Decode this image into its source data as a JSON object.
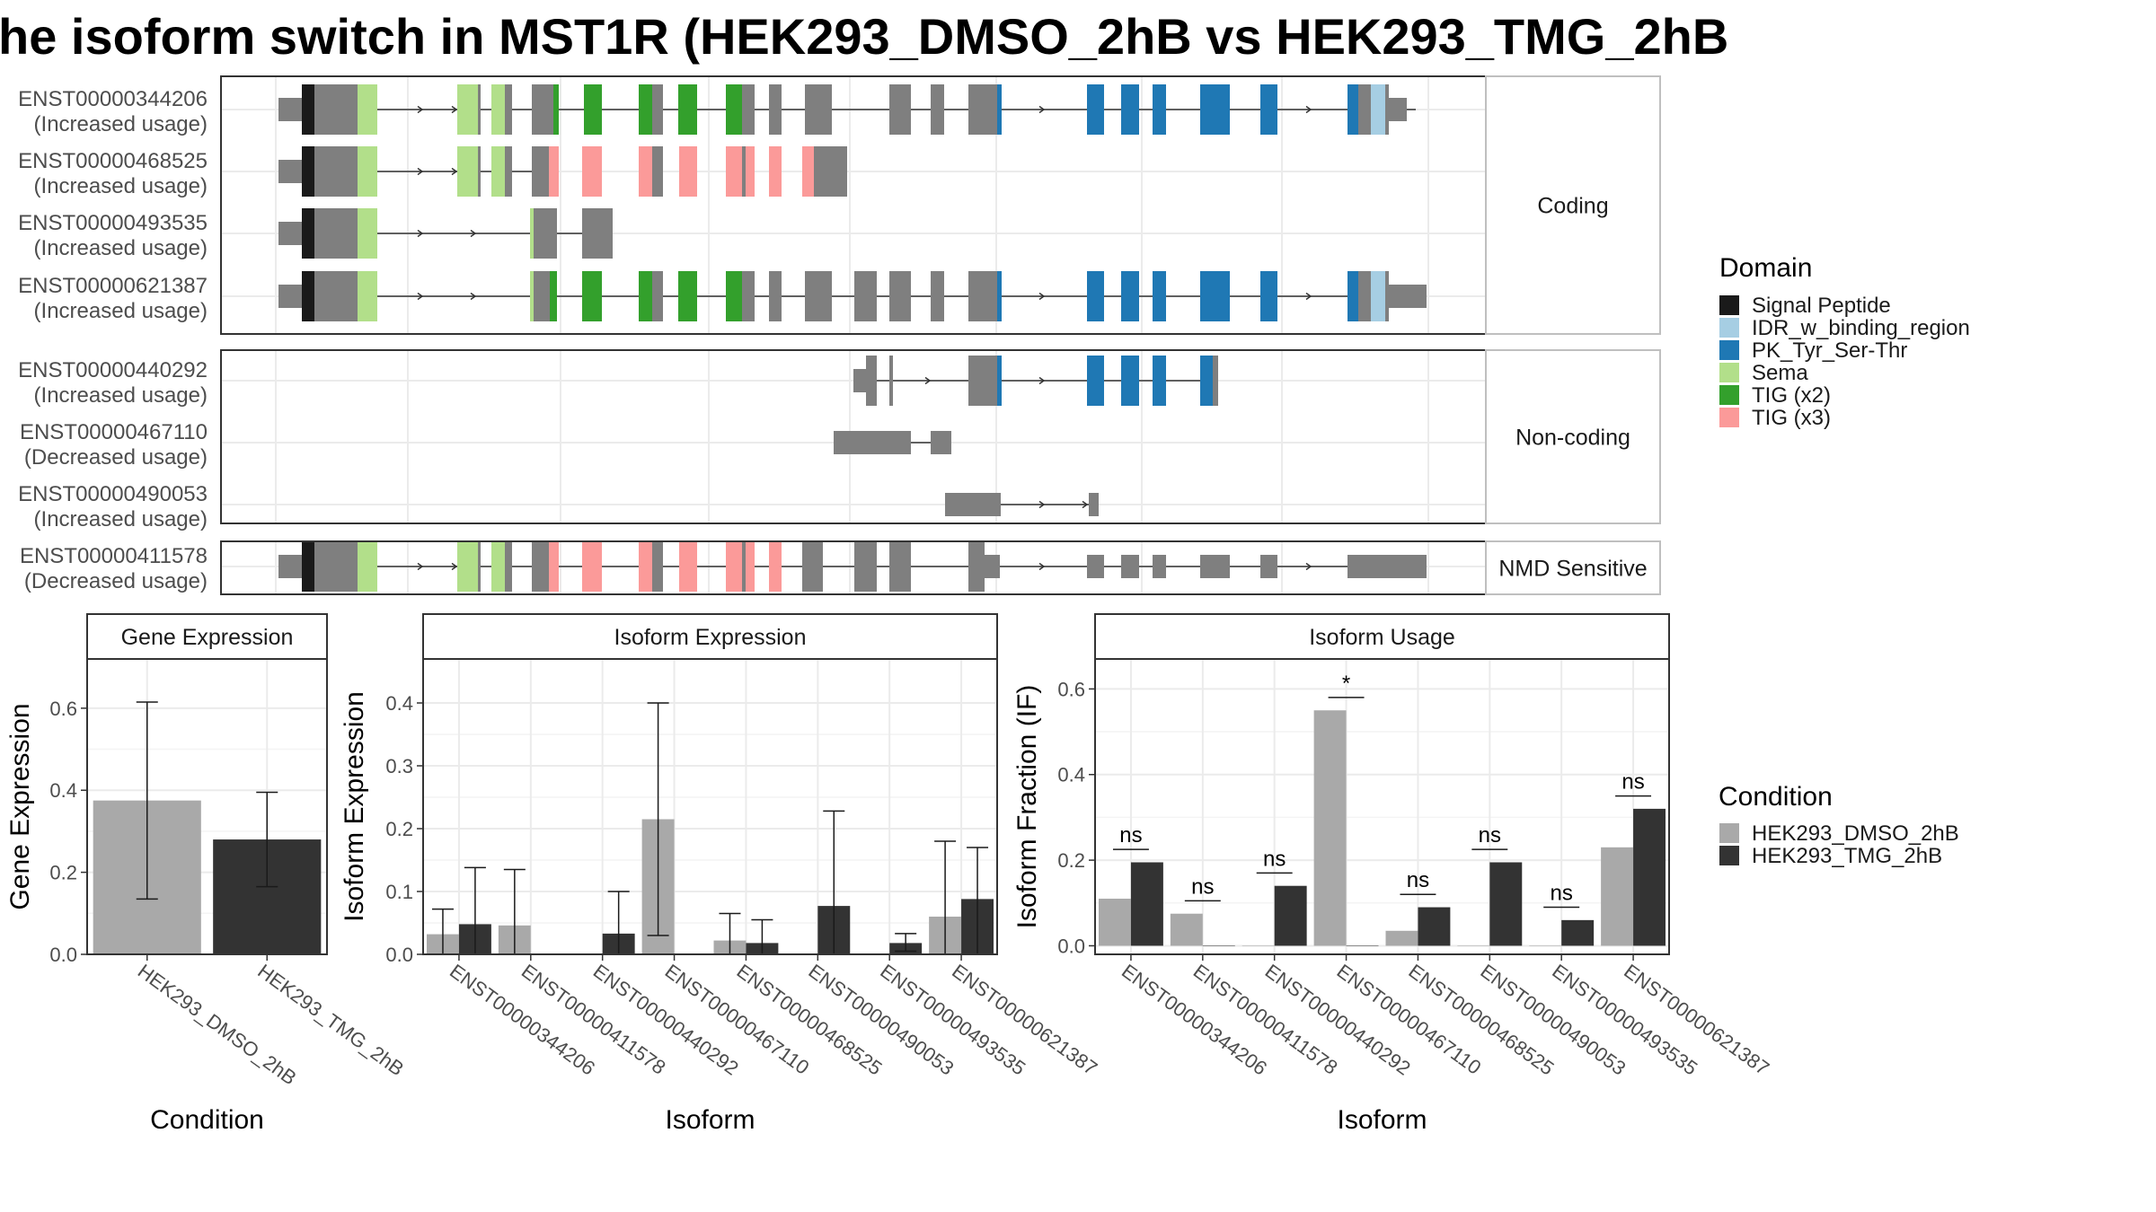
{
  "title": "he isoform switch in MST1R (HEK293_DMSO_2hB vs HEK293_TMG_2hB",
  "colors": {
    "Signal Peptide": "#1a1a1a",
    "IDR_w_binding_region": "#a6cee3",
    "PK_Tyr_Ser-Thr": "#1f78b4",
    "Sema": "#b2df8a",
    "TIG (x2)": "#33a02c",
    "TIG (x3)": "#fb9a99",
    "exon": "#7f7f7f",
    "HEK293_DMSO_2hB": "#a9a9a9",
    "HEK293_TMG_2hB": "#333333"
  },
  "isoform_panel": {
    "facets": [
      {
        "label": "Coding",
        "rows": [
          {
            "id": "ENST00000344206",
            "usage": "(Increased usage)"
          },
          {
            "id": "ENST00000468525",
            "usage": "(Increased usage)"
          },
          {
            "id": "ENST00000493535",
            "usage": "(Increased usage)"
          },
          {
            "id": "ENST00000621387",
            "usage": "(Increased usage)"
          }
        ]
      },
      {
        "label": "Non-coding",
        "rows": [
          {
            "id": "ENST00000440292",
            "usage": "(Increased usage)"
          },
          {
            "id": "ENST00000467110",
            "usage": "(Decreased usage)"
          },
          {
            "id": "ENST00000490053",
            "usage": "(Increased usage)"
          }
        ]
      },
      {
        "label": "NMD Sensitive",
        "rows": [
          {
            "id": "ENST00000411578",
            "usage": "(Decreased usage)"
          }
        ]
      }
    ]
  },
  "legend_domain": {
    "title": "Domain",
    "items": [
      "Signal Peptide",
      "IDR_w_binding_region",
      "PK_Tyr_Ser-Thr",
      "Sema",
      "TIG (x2)",
      "TIG (x3)"
    ]
  },
  "legend_condition": {
    "title": "Condition",
    "items": [
      "HEK293_DMSO_2hB",
      "HEK293_TMG_2hB"
    ]
  },
  "chart_data": [
    {
      "type": "bar",
      "title": "Gene Expression",
      "xlabel": "Condition",
      "ylabel": "Gene Expression",
      "categories": [
        "HEK293_DMSO_2hB",
        "HEK293_TMG_2hB"
      ],
      "values": [
        0.375,
        0.28
      ],
      "error_low": [
        0.135,
        0.165
      ],
      "error_high": [
        0.615,
        0.395
      ],
      "ylim": [
        0,
        0.72
      ],
      "yticks": [
        "0.0",
        "0.2",
        "0.4",
        "0.6"
      ],
      "grid": true
    },
    {
      "type": "bar",
      "title": "Isoform Expression",
      "xlabel": "Isoform",
      "ylabel": "Isoform Expression",
      "categories": [
        "ENST00000344206",
        "ENST00000411578",
        "ENST00000440292",
        "ENST00000467110",
        "ENST00000468525",
        "ENST00000490053",
        "ENST00000493535",
        "ENST00000621387"
      ],
      "series": [
        {
          "name": "HEK293_DMSO_2hB",
          "values": [
            0.032,
            0.046,
            0,
            0.215,
            0.022,
            0,
            0,
            0.06
          ],
          "error_low": [
            0.0,
            0.0,
            null,
            0.03,
            0.0,
            null,
            null,
            0.0
          ],
          "error_high": [
            0.072,
            0.135,
            null,
            0.4,
            0.065,
            null,
            null,
            0.18
          ]
        },
        {
          "name": "HEK293_TMG_2hB",
          "values": [
            0.048,
            0,
            0.033,
            0,
            0.018,
            0.077,
            0.018,
            0.088
          ],
          "error_low": [
            0.0,
            null,
            0.0,
            null,
            0.0,
            0.0,
            0.005,
            0.0
          ],
          "error_high": [
            0.138,
            null,
            0.1,
            null,
            0.055,
            0.228,
            0.033,
            0.17
          ]
        }
      ],
      "ylim": [
        0,
        0.47
      ],
      "yticks": [
        "0.0",
        "0.1",
        "0.2",
        "0.3",
        "0.4"
      ],
      "grid": true
    },
    {
      "type": "bar",
      "title": "Isoform Usage",
      "xlabel": "Isoform",
      "ylabel": "Isoform Fraction (IF)",
      "categories": [
        "ENST00000344206",
        "ENST00000411578",
        "ENST00000440292",
        "ENST00000467110",
        "ENST00000468525",
        "ENST00000490053",
        "ENST00000493535",
        "ENST00000621387"
      ],
      "series": [
        {
          "name": "HEK293_DMSO_2hB",
          "values": [
            0.11,
            0.075,
            0,
            0.55,
            0.035,
            0,
            0,
            0.23
          ]
        },
        {
          "name": "HEK293_TMG_2hB",
          "values": [
            0.195,
            0,
            0.14,
            0,
            0.09,
            0.195,
            0.06,
            0.32
          ]
        }
      ],
      "significance": [
        {
          "category": "ENST00000344206",
          "label": "ns",
          "y": 0.225
        },
        {
          "category": "ENST00000411578",
          "label": "ns",
          "y": 0.105
        },
        {
          "category": "ENST00000440292",
          "label": "ns",
          "y": 0.17
        },
        {
          "category": "ENST00000467110",
          "label": "*",
          "y": 0.58
        },
        {
          "category": "ENST00000468525",
          "label": "ns",
          "y": 0.12
        },
        {
          "category": "ENST00000490053",
          "label": "ns",
          "y": 0.225
        },
        {
          "category": "ENST00000493535",
          "label": "ns",
          "y": 0.09
        },
        {
          "category": "ENST00000621387",
          "label": "ns",
          "y": 0.35
        }
      ],
      "ylim": [
        -0.02,
        0.67
      ],
      "yticks": [
        "0.0",
        "0.2",
        "0.4",
        "0.6"
      ],
      "grid": true
    }
  ]
}
